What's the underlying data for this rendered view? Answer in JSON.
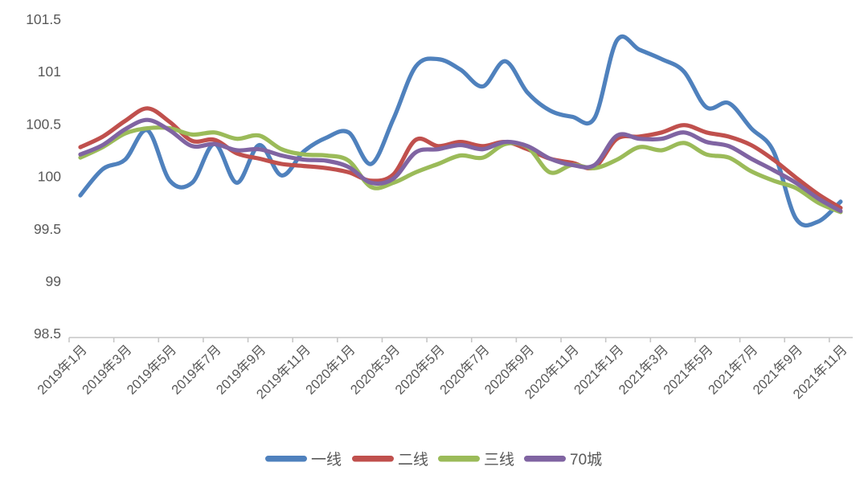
{
  "page": {
    "background": "#ffffff"
  },
  "chart_data": {
    "type": "line",
    "title": "",
    "x": [
      "2019年1月",
      "2019年2月",
      "2019年3月",
      "2019年4月",
      "2019年5月",
      "2019年6月",
      "2019年7月",
      "2019年8月",
      "2019年9月",
      "2019年10月",
      "2019年11月",
      "2019年12月",
      "2020年1月",
      "2020年2月",
      "2020年3月",
      "2020年4月",
      "2020年5月",
      "2020年6月",
      "2020年7月",
      "2020年8月",
      "2020年9月",
      "2020年10月",
      "2020年11月",
      "2020年12月",
      "2021年1月",
      "2021年2月",
      "2021年3月",
      "2021年4月",
      "2021年5月",
      "2021年6月",
      "2021年7月",
      "2021年8月",
      "2021年9月",
      "2021年10月",
      "2021年11月"
    ],
    "x_tick_labels": [
      "2019年1月",
      "2019年3月",
      "2019年5月",
      "2019年7月",
      "2019年9月",
      "2019年11月",
      "2020年1月",
      "2020年3月",
      "2020年5月",
      "2020年7月",
      "2020年9月",
      "2020年11月",
      "2021年1月",
      "2021年3月",
      "2021年5月",
      "2021年7月",
      "2021年9月",
      "2021年11月"
    ],
    "series": [
      {
        "name": "一线",
        "color": "#4F81BD",
        "values": [
          99.82,
          100.07,
          100.16,
          100.44,
          99.96,
          99.94,
          100.31,
          99.94,
          100.3,
          100.01,
          100.24,
          100.37,
          100.42,
          100.12,
          100.55,
          101.05,
          101.12,
          101.02,
          100.86,
          101.1,
          100.8,
          100.63,
          100.57,
          100.56,
          101.3,
          101.21,
          101.12,
          101.0,
          100.66,
          100.7,
          100.46,
          100.24,
          99.6,
          99.57,
          99.76
        ]
      },
      {
        "name": "二线",
        "color": "#C0504D",
        "values": [
          100.28,
          100.38,
          100.53,
          100.65,
          100.52,
          100.34,
          100.35,
          100.22,
          100.17,
          100.12,
          100.1,
          100.08,
          100.04,
          99.96,
          100.02,
          100.35,
          100.29,
          100.33,
          100.29,
          100.33,
          100.26,
          100.17,
          100.13,
          100.09,
          100.36,
          100.38,
          100.42,
          100.49,
          100.42,
          100.38,
          100.3,
          100.16,
          99.99,
          99.83,
          99.7
        ]
      },
      {
        "name": "三线",
        "color": "#9BBB59",
        "values": [
          100.18,
          100.28,
          100.41,
          100.46,
          100.46,
          100.4,
          100.42,
          100.36,
          100.39,
          100.26,
          100.21,
          100.2,
          100.15,
          99.9,
          99.94,
          100.04,
          100.12,
          100.2,
          100.18,
          100.31,
          100.28,
          100.04,
          100.11,
          100.08,
          100.16,
          100.28,
          100.25,
          100.32,
          100.21,
          100.18,
          100.05,
          99.96,
          99.89,
          99.75,
          99.66
        ]
      },
      {
        "name": "70城",
        "color": "#8064A2",
        "values": [
          100.21,
          100.3,
          100.45,
          100.54,
          100.44,
          100.29,
          100.31,
          100.25,
          100.26,
          100.2,
          100.16,
          100.15,
          100.09,
          99.94,
          99.98,
          100.23,
          100.26,
          100.3,
          100.26,
          100.33,
          100.29,
          100.17,
          100.11,
          100.11,
          100.39,
          100.36,
          100.36,
          100.42,
          100.33,
          100.29,
          100.17,
          100.06,
          99.94,
          99.79,
          99.67
        ]
      }
    ],
    "ylim": [
      98.5,
      101.5
    ],
    "yticks": [
      101.5,
      101,
      100.5,
      100,
      99.5,
      99,
      98.5
    ],
    "grid": false,
    "legend": {
      "position": "bottom",
      "items": [
        "一线",
        "二线",
        "三线",
        "70城"
      ]
    },
    "axis_color": "#c6c6c6",
    "label_color": "#595959"
  }
}
